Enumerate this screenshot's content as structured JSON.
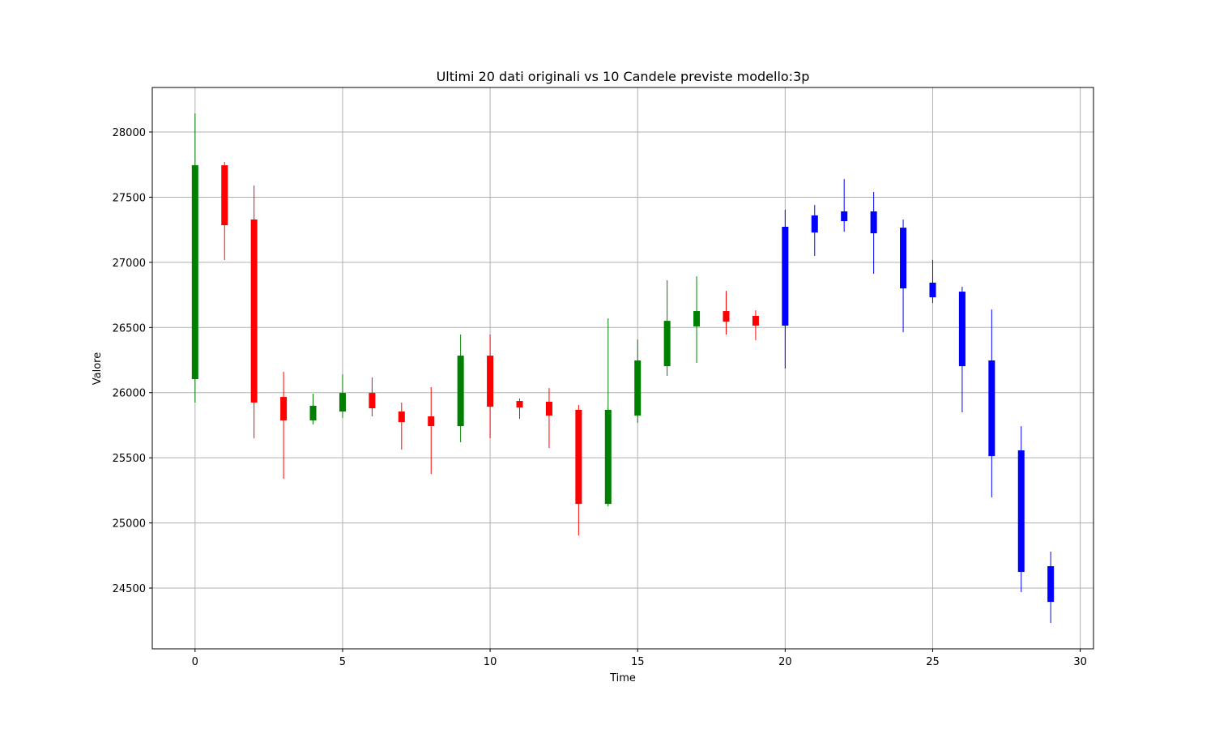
{
  "chart_data": {
    "type": "candlestick",
    "title": "Ultimi 20 dati originali vs 10 Candele previste modello:3p",
    "x_label": "Time",
    "y_label": "Valore",
    "x": [
      0,
      1,
      2,
      3,
      4,
      5,
      6,
      7,
      8,
      9,
      10,
      11,
      12,
      13,
      14,
      15,
      16,
      17,
      18,
      19,
      20,
      21,
      22,
      23,
      24,
      25,
      26,
      27,
      28,
      29
    ],
    "open": [
      26104,
      27745,
      27329,
      25967,
      25787,
      25855,
      25998,
      25855,
      25818,
      25743,
      26284,
      25936,
      25930,
      25868,
      25146,
      25824,
      26203,
      26508,
      26626,
      26589,
      26514,
      27229,
      27316,
      27391,
      27266,
      26844,
      26775,
      26247,
      25557,
      24668
    ],
    "high": [
      28143,
      27770,
      27590,
      26160,
      25992,
      26141,
      26116,
      25924,
      26042,
      26446,
      26446,
      25955,
      26035,
      25905,
      26570,
      26408,
      26862,
      26893,
      26781,
      26632,
      27403,
      27440,
      27639,
      27540,
      27329,
      27018,
      26813,
      26638,
      25743,
      24780
    ],
    "low": [
      25924,
      27018,
      25650,
      25339,
      25756,
      25806,
      25818,
      25563,
      25376,
      25619,
      25650,
      25799,
      25575,
      24904,
      25128,
      25768,
      26129,
      26228,
      26446,
      26402,
      26185,
      27049,
      27235,
      26912,
      26464,
      26688,
      25849,
      25196,
      24469,
      24233
    ],
    "close": [
      27745,
      27285,
      25924,
      25787,
      25899,
      25998,
      25880,
      25774,
      25743,
      26284,
      25892,
      25886,
      25824,
      25146,
      25868,
      26247,
      26551,
      26626,
      26545,
      26514,
      27273,
      27360,
      27391,
      27223,
      26800,
      26732,
      26203,
      25513,
      24624,
      24394
    ],
    "colors": [
      "green",
      "red",
      "red",
      "red",
      "green",
      "green",
      "red",
      "red",
      "red",
      "green",
      "red",
      "red",
      "red",
      "red",
      "green",
      "green",
      "green",
      "green",
      "red",
      "red",
      "blue",
      "blue",
      "blue",
      "blue",
      "blue",
      "blue",
      "blue",
      "blue",
      "blue",
      "blue"
    ],
    "xlim": [
      -1.45,
      30.45
    ],
    "ylim": [
      24034,
      28342
    ],
    "xticks": [
      0,
      5,
      10,
      15,
      20,
      25,
      30
    ],
    "yticks": [
      24500,
      25000,
      25500,
      26000,
      26500,
      27000,
      27500,
      28000
    ],
    "grid": true
  }
}
